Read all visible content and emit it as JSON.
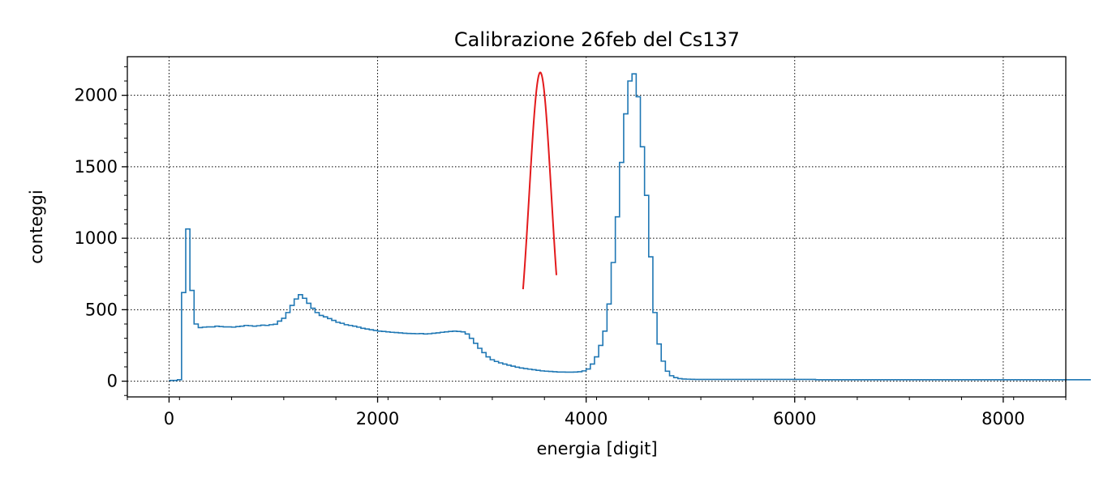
{
  "chart_data": {
    "type": "line",
    "title": "Calibrazione 26feb del Cs137",
    "xlabel": "energia [digit]",
    "ylabel": "conteggi",
    "xlim": [
      -400,
      8600
    ],
    "ylim": [
      -110,
      2270
    ],
    "xticks": [
      0,
      2000,
      4000,
      6000,
      8000
    ],
    "xtick_labels": [
      "0",
      "2000",
      "4000",
      "6000",
      "8000"
    ],
    "yticks": [
      0,
      500,
      1000,
      1500,
      2000
    ],
    "ytick_labels": [
      "0",
      "500",
      "1000",
      "1500",
      "2000"
    ],
    "grid": true,
    "legend": "none",
    "series": [
      {
        "style": "step histogram",
        "color": "#1f77b4",
        "bin_width": 40,
        "x_start": 0,
        "values": [
          5,
          5,
          10,
          620,
          1065,
          635,
          400,
          375,
          378,
          380,
          380,
          385,
          382,
          380,
          380,
          378,
          382,
          385,
          390,
          388,
          385,
          388,
          392,
          390,
          395,
          398,
          420,
          440,
          480,
          530,
          575,
          605,
          580,
          545,
          510,
          480,
          460,
          450,
          438,
          425,
          412,
          405,
          395,
          390,
          385,
          378,
          370,
          365,
          360,
          355,
          350,
          348,
          345,
          342,
          340,
          338,
          335,
          334,
          333,
          332,
          333,
          330,
          332,
          335,
          338,
          342,
          345,
          348,
          350,
          348,
          345,
          330,
          300,
          265,
          230,
          200,
          170,
          150,
          138,
          128,
          120,
          112,
          105,
          98,
          92,
          88,
          84,
          80,
          76,
          72,
          70,
          68,
          66,
          64,
          64,
          63,
          63,
          64,
          66,
          72,
          85,
          120,
          170,
          250,
          350,
          540,
          830,
          1150,
          1530,
          1870,
          2100,
          2150,
          1990,
          1640,
          1300,
          870,
          480,
          260,
          140,
          70,
          38,
          25,
          18,
          15,
          14,
          13,
          12,
          12,
          12,
          12,
          12,
          12,
          12,
          12,
          12,
          12,
          12,
          12,
          12,
          12,
          12,
          12,
          12,
          12,
          12,
          12,
          12,
          12,
          12,
          12,
          12,
          12,
          12,
          12,
          12,
          10,
          10,
          10,
          10,
          10,
          10,
          10,
          10,
          10,
          10,
          10,
          10,
          10,
          10,
          10,
          10,
          10,
          10,
          10,
          10,
          10,
          10,
          10,
          10,
          10,
          10,
          10,
          10,
          10,
          10,
          10,
          10,
          10,
          10,
          10,
          10,
          10,
          10,
          10,
          10,
          10,
          10,
          10,
          10,
          10,
          10,
          10,
          10,
          10,
          10,
          10,
          10,
          10,
          10,
          10,
          10,
          10,
          10,
          10,
          10,
          10,
          10,
          10,
          10,
          10,
          10
        ]
      },
      {
        "style": "gaussian fit",
        "color": "#e31a1c",
        "amplitude": 2160,
        "mean": 3560,
        "sigma": 106,
        "x_range": [
          3395,
          3715
        ]
      }
    ]
  }
}
